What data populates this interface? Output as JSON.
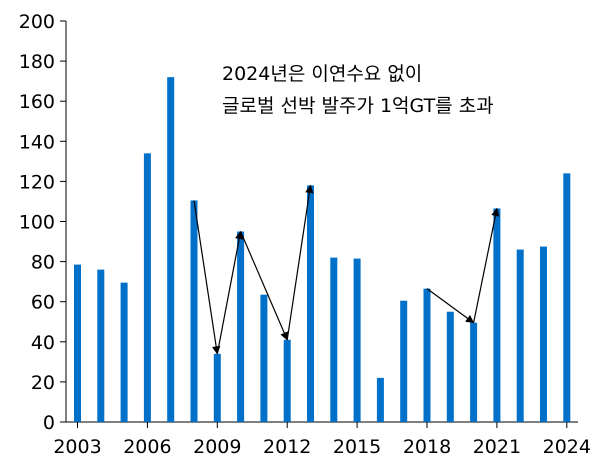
{
  "chart_data": {
    "type": "bar",
    "years": [
      2003,
      2004,
      2005,
      2006,
      2007,
      2008,
      2009,
      2010,
      2011,
      2012,
      2013,
      2014,
      2015,
      2016,
      2017,
      2018,
      2019,
      2020,
      2021,
      2022,
      2023,
      2024
    ],
    "values": [
      78.5,
      76,
      69.5,
      134,
      172,
      110.5,
      34,
      95,
      63.5,
      41,
      118,
      82,
      81.5,
      22,
      60.5,
      66.5,
      55,
      49.5,
      106.5,
      86,
      87.5,
      124
    ],
    "x_tick_labels": [
      "2003",
      "2006",
      "2009",
      "2012",
      "2015",
      "2018",
      "2021",
      "2024"
    ],
    "y_ticks": [
      0,
      20,
      40,
      60,
      80,
      100,
      120,
      140,
      160,
      180,
      200
    ],
    "ylim": [
      0,
      200
    ],
    "color": "#0070c8",
    "annotation_lines": [
      "2024년은 이연수요 없이",
      "글로벌 선박 발주가 1억GT를 초과"
    ],
    "arrows": [
      {
        "from_year": 2008,
        "from_value": 110.5,
        "to_year": 2009,
        "to_value": 34
      },
      {
        "from_year": 2009,
        "from_value": 34,
        "to_year": 2010,
        "to_value": 95
      },
      {
        "from_year": 2010,
        "from_value": 95,
        "to_year": 2012,
        "to_value": 41
      },
      {
        "from_year": 2012,
        "from_value": 41,
        "to_year": 2013,
        "to_value": 118
      },
      {
        "from_year": 2018,
        "from_value": 66.5,
        "to_year": 2020,
        "to_value": 49.5
      },
      {
        "from_year": 2020,
        "from_value": 49.5,
        "to_year": 2021,
        "to_value": 106.5
      }
    ]
  }
}
